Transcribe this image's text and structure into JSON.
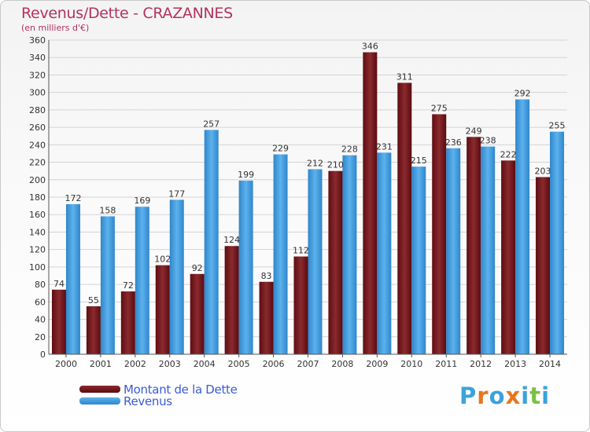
{
  "header": {
    "title": "Revenus/Dette - CRAZANNES",
    "subtitle": "(en milliers d'€)"
  },
  "legend": [
    {
      "label": "Montant de la Dette",
      "color": "#7a1a1e"
    },
    {
      "label": "Revenus",
      "color": "#3f9ee0"
    }
  ],
  "logo": {
    "text": "Proxiti",
    "colors": [
      "#3aa3d9",
      "#e8761e",
      "#3aa3d9",
      "#e8761e",
      "#3aa3d9",
      "#7cc043",
      "#3aa3d9"
    ]
  },
  "chart_data": {
    "type": "bar",
    "categories": [
      "2000",
      "2001",
      "2002",
      "2003",
      "2004",
      "2005",
      "2006",
      "2007",
      "2008",
      "2009",
      "2010",
      "2011",
      "2012",
      "2013",
      "2014"
    ],
    "series": [
      {
        "name": "Montant de la Dette",
        "color": "#7a1a1e",
        "values": [
          74,
          55,
          72,
          102,
          92,
          124,
          83,
          112,
          210,
          346,
          311,
          275,
          249,
          222,
          203
        ]
      },
      {
        "name": "Revenus",
        "color": "#3f9ee0",
        "values": [
          172,
          158,
          169,
          177,
          257,
          199,
          229,
          212,
          228,
          231,
          215,
          236,
          238,
          292,
          255
        ]
      }
    ],
    "ylim": [
      0,
      360
    ],
    "yticks": [
      0,
      20,
      40,
      60,
      80,
      100,
      120,
      140,
      160,
      180,
      200,
      220,
      240,
      260,
      280,
      300,
      320,
      340,
      360
    ],
    "grid": true,
    "legend_position": "bottom-left"
  }
}
